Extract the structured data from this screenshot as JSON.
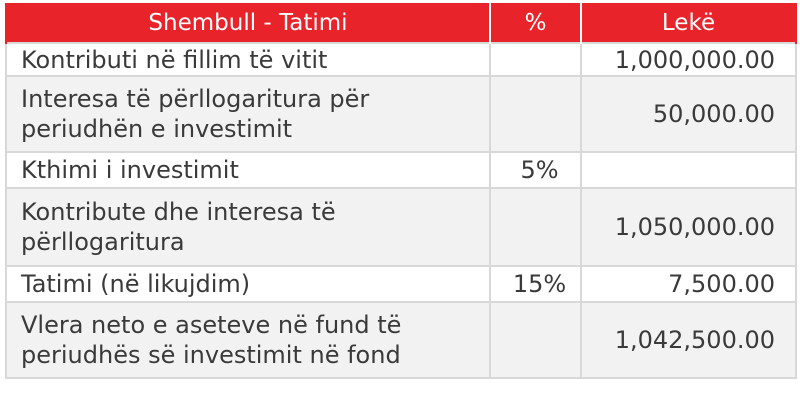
{
  "table": {
    "headers": {
      "example": "Shembull - Tatimi",
      "percent": "%",
      "amount": "Lekë"
    },
    "rows": [
      {
        "label": "Kontributi  në fillim të vitit",
        "percent": "",
        "amount": "1,000,000.00"
      },
      {
        "label": "Interesa të përllogaritura për periudhën e investimit",
        "percent": "",
        "amount": "50,000.00"
      },
      {
        "label": "Kthimi i investimit",
        "percent": "5%",
        "amount": ""
      },
      {
        "label": "Kontribute dhe interesa të përllogaritura",
        "percent": "",
        "amount": "1,050,000.00"
      },
      {
        "label": "Tatimi (në likujdim)",
        "percent": "15%",
        "amount": "7,500.00"
      },
      {
        "label": "Vlera neto e aseteve në fund të periudhës së investimit në fond",
        "percent": "",
        "amount": "1,042,500.00"
      }
    ]
  }
}
